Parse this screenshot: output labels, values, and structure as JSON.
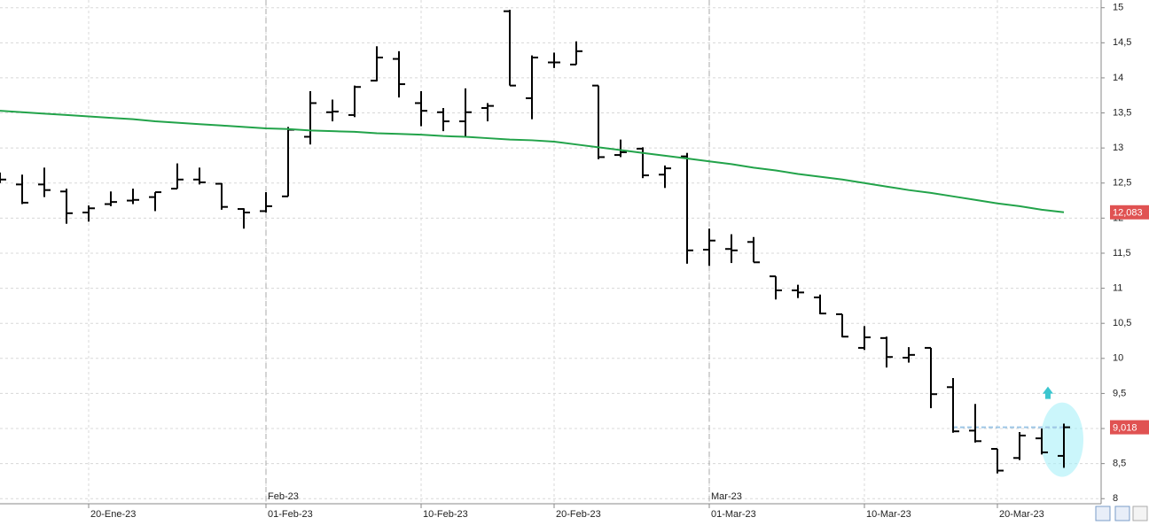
{
  "chart_data": {
    "type": "ohlc",
    "categories": [
      null,
      null,
      null,
      null,
      "20-Ene-23",
      null,
      null,
      null,
      null,
      null,
      null,
      null,
      "01-Feb-23",
      null,
      null,
      null,
      null,
      null,
      null,
      "10-Feb-23",
      null,
      null,
      null,
      null,
      null,
      "20-Feb-23",
      null,
      null,
      null,
      null,
      null,
      null,
      "01-Mar-23",
      null,
      null,
      null,
      null,
      null,
      null,
      "10-Mar-23",
      null,
      null,
      null,
      null,
      null,
      "20-Mar-23",
      null,
      null,
      null
    ],
    "month_labels": [
      null,
      null,
      null,
      null,
      null,
      null,
      null,
      null,
      null,
      null,
      null,
      null,
      "Feb-23",
      null,
      null,
      null,
      null,
      null,
      null,
      null,
      null,
      null,
      null,
      null,
      null,
      null,
      null,
      null,
      null,
      null,
      null,
      null,
      "Mar-23",
      null,
      null,
      null,
      null,
      null,
      null,
      null,
      null,
      null,
      null,
      null,
      null,
      null,
      null,
      null,
      null
    ],
    "open": [
      12.6,
      12.48,
      12.48,
      12.38,
      12.08,
      12.2,
      12.25,
      12.3,
      12.42,
      12.55,
      12.49,
      12.13,
      12.1,
      12.31,
      13.16,
      13.51,
      13.47,
      13.96,
      14.27,
      13.64,
      13.51,
      13.38,
      13.57,
      14.95,
      13.71,
      14.22,
      14.19,
      13.89,
      12.9,
      12.99,
      12.62,
      12.88,
      11.55,
      11.56,
      11.66,
      11.17,
      10.97,
      10.87,
      10.63,
      10.15,
      10.29,
      10.01,
      10.15,
      9.59,
      8.97,
      8.71,
      8.58,
      8.86,
      8.61
    ],
    "high": [
      12.65,
      12.62,
      12.72,
      12.42,
      12.18,
      12.38,
      12.42,
      12.37,
      12.78,
      12.72,
      12.5,
      12.14,
      12.37,
      13.3,
      13.81,
      13.69,
      13.89,
      14.45,
      14.38,
      13.81,
      13.57,
      13.85,
      13.64,
      14.97,
      14.32,
      14.36,
      14.52,
      13.89,
      13.12,
      13.01,
      12.75,
      12.93,
      11.85,
      11.77,
      11.73,
      11.17,
      11.05,
      10.91,
      10.63,
      10.46,
      10.31,
      10.16,
      10.15,
      9.72,
      9.35,
      8.71,
      8.95,
      9.0,
      9.07
    ],
    "low": [
      12.5,
      12.2,
      12.3,
      11.92,
      11.95,
      12.17,
      12.2,
      12.1,
      12.42,
      12.48,
      12.12,
      11.85,
      12.08,
      12.31,
      13.05,
      13.38,
      13.44,
      13.95,
      13.72,
      13.31,
      13.24,
      13.16,
      13.38,
      13.89,
      13.41,
      14.14,
      14.19,
      12.84,
      12.87,
      12.57,
      12.43,
      11.35,
      11.32,
      11.36,
      11.37,
      10.84,
      10.86,
      10.63,
      10.3,
      10.12,
      9.87,
      9.94,
      9.29,
      8.94,
      8.8,
      8.36,
      8.55,
      8.63,
      8.44
    ],
    "close": [
      12.55,
      12.22,
      12.4,
      12.07,
      12.14,
      12.23,
      12.26,
      12.37,
      12.55,
      12.51,
      12.16,
      12.08,
      12.17,
      13.26,
      13.64,
      13.52,
      13.87,
      14.29,
      13.91,
      13.53,
      13.38,
      13.51,
      13.6,
      13.89,
      14.29,
      14.22,
      14.38,
      12.87,
      12.94,
      12.61,
      12.71,
      11.54,
      11.68,
      11.54,
      11.37,
      10.97,
      10.94,
      10.64,
      10.31,
      10.3,
      10.02,
      10.05,
      9.49,
      8.96,
      8.82,
      8.4,
      8.9,
      8.66,
      9.018
    ],
    "close_label": "9,018",
    "color": "#000000",
    "moving_average": {
      "color": "#22a34a",
      "last_label": "12,083",
      "values": [
        13.53,
        13.51,
        13.49,
        13.47,
        13.45,
        13.43,
        13.41,
        13.38,
        13.36,
        13.34,
        13.32,
        13.3,
        13.28,
        13.27,
        13.25,
        13.24,
        13.23,
        13.21,
        13.2,
        13.19,
        13.17,
        13.16,
        13.14,
        13.12,
        13.11,
        13.09,
        13.05,
        13.01,
        12.97,
        12.93,
        12.89,
        12.85,
        12.81,
        12.77,
        12.72,
        12.68,
        12.63,
        12.59,
        12.55,
        12.5,
        12.45,
        12.4,
        12.36,
        12.31,
        12.26,
        12.21,
        12.17,
        12.12,
        12.083
      ]
    },
    "tag_color": "#e05252",
    "ylim": [
      7.94,
      15.11
    ],
    "yticks": [
      8,
      {
        "value": 8.5,
        "label": "8,5"
      },
      9,
      {
        "value": 9.5,
        "label": "9,5"
      },
      10,
      {
        "value": 10.5,
        "label": "10,5"
      },
      11,
      {
        "value": 11.5,
        "label": "11,5"
      },
      12,
      {
        "value": 12.5,
        "label": "12,5"
      },
      13,
      {
        "value": 13.5,
        "label": "13,5"
      },
      14,
      {
        "value": 14.5,
        "label": "14,5"
      },
      15
    ],
    "grid": true
  }
}
